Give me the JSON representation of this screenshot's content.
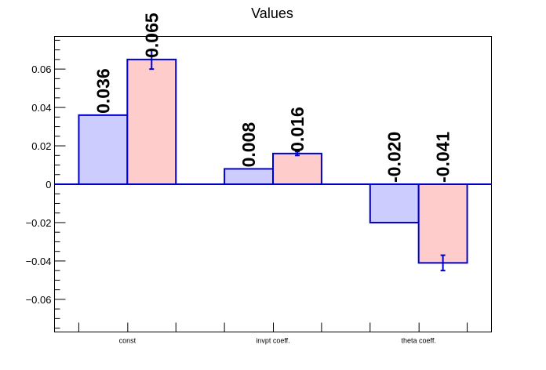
{
  "chart_data": {
    "type": "bar",
    "title": "Values",
    "categories": [
      "const",
      "invpt coeff.",
      "theta coeff."
    ],
    "series": [
      {
        "values": [
          0.036,
          0.008,
          -0.02
        ],
        "errors": [
          0,
          0,
          0
        ],
        "labels": [
          "0.036",
          "0.008",
          "-0.020"
        ],
        "fill": "#ccccff",
        "stroke": "#0000cc"
      },
      {
        "values": [
          0.065,
          0.016,
          -0.041
        ],
        "errors": [
          0.005,
          0.001,
          0.004
        ],
        "labels": [
          "0.065",
          "0.016",
          "-0.041"
        ],
        "fill": "#ffcccc",
        "stroke": "#0000cc"
      }
    ],
    "ylim": [
      -0.077,
      0.077
    ],
    "yticks": [
      -0.06,
      -0.04,
      -0.02,
      0,
      0.02,
      0.04,
      0.06
    ],
    "ytick_labels": [
      "−0.06",
      "−0.04",
      "−0.02",
      "0",
      "0.02",
      "0.04",
      "0.06"
    ],
    "xlabel": "",
    "ylabel": "",
    "grid": false,
    "zero_line_color": "#0000cc"
  }
}
